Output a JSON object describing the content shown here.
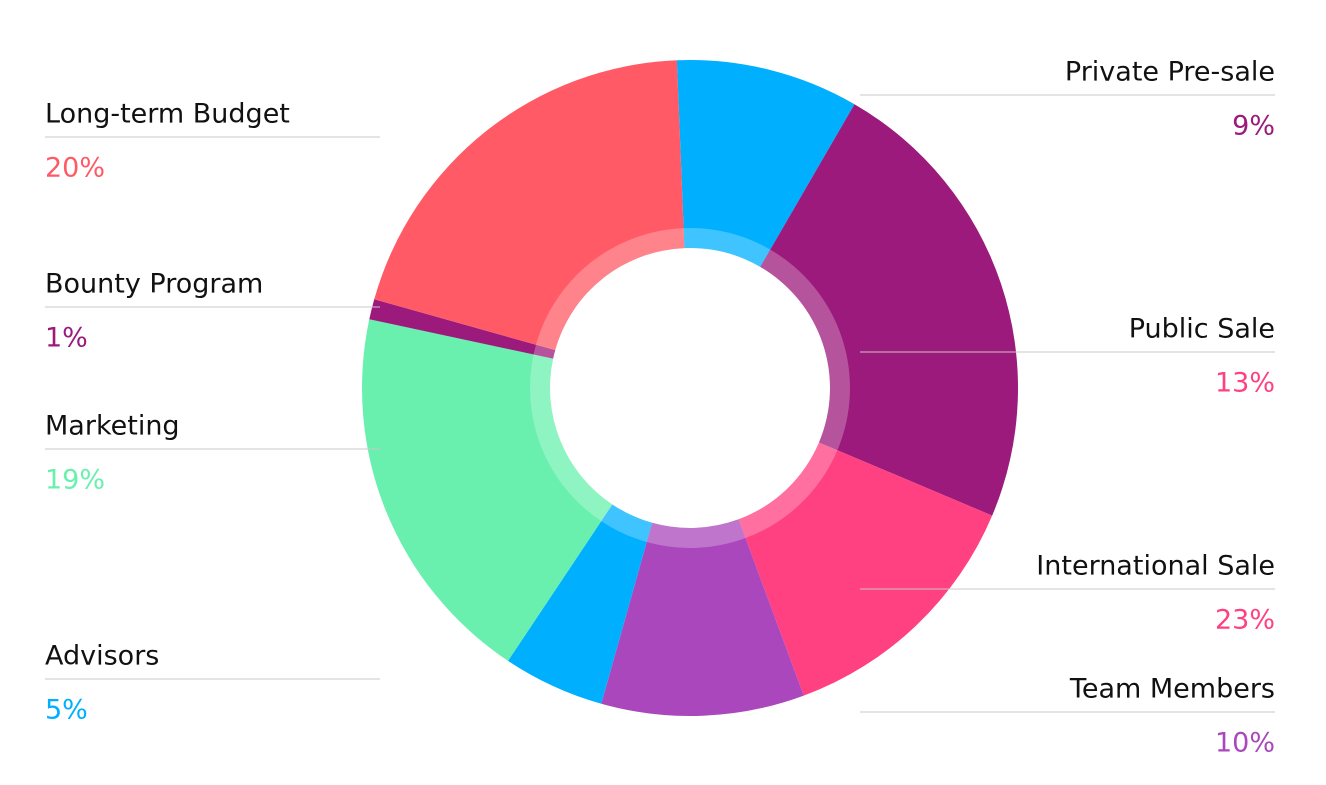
{
  "chart_data": {
    "type": "donut",
    "categories": [
      "Private Pre-sale",
      "International Sale",
      "Public Sale",
      "Team Members",
      "Advisors",
      "Marketing",
      "Bounty Program",
      "Long-term Budget"
    ],
    "values": [
      9,
      23,
      13,
      10,
      5,
      19,
      1,
      20
    ],
    "value_labels": [
      "9%",
      "23%",
      "13%",
      "10%",
      "5%",
      "19%",
      "1%",
      "20%"
    ],
    "colors": [
      "#00b0ff",
      "#9c1a7c",
      "#ff4081",
      "#ab47bc",
      "#00b0ff",
      "#69f0ae",
      "#9c1a7c",
      "#ff5a65"
    ],
    "label_colors": [
      "#9c1a7c",
      "#ff4081",
      "#ff4081",
      "#ab47bc",
      "#00b0ff",
      "#69f0ae",
      "#9c1a7c",
      "#ff5a65"
    ]
  }
}
